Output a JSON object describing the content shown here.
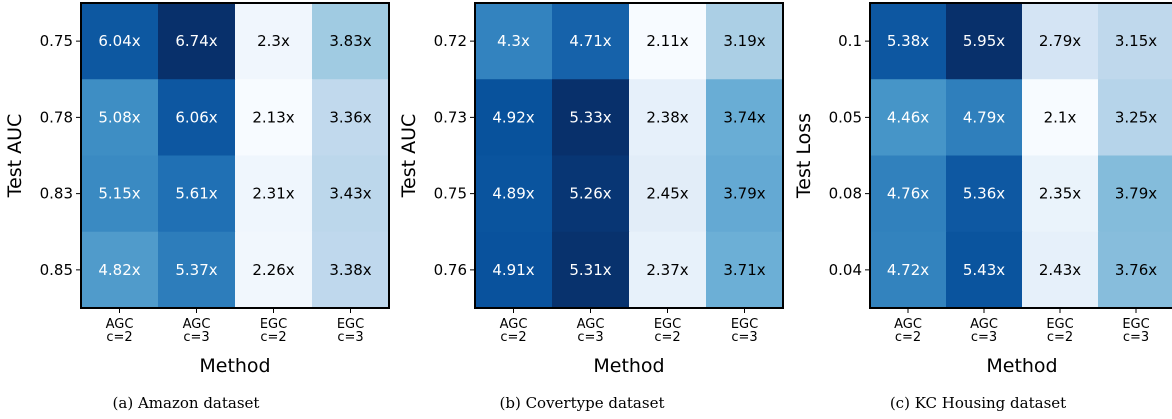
{
  "chart_data": [
    {
      "type": "heatmap",
      "caption": "(a) Amazon dataset",
      "ylabel": "Test AUC",
      "xlabel": "Method",
      "categories": [
        "AGC\nc=2",
        "AGC\nc=3",
        "EGC\nc=2",
        "EGC\nc=3"
      ],
      "rows": [
        "0.75",
        "0.78",
        "0.83",
        "0.85"
      ],
      "values": [
        [
          6.04,
          6.74,
          2.3,
          3.83
        ],
        [
          5.08,
          6.06,
          2.13,
          3.36
        ],
        [
          5.15,
          5.61,
          2.31,
          3.43
        ],
        [
          4.82,
          5.37,
          2.26,
          3.38
        ]
      ],
      "cell_labels": [
        [
          "6.04x",
          "6.74x",
          "2.3x",
          "3.83x"
        ],
        [
          "5.08x",
          "6.06x",
          "2.13x",
          "3.36x"
        ],
        [
          "5.15x",
          "5.61x",
          "2.31x",
          "3.43x"
        ],
        [
          "4.82x",
          "5.37x",
          "2.26x",
          "3.38x"
        ]
      ],
      "colormap": "Blues"
    },
    {
      "type": "heatmap",
      "caption": "(b) Covertype dataset",
      "ylabel": "Test AUC",
      "xlabel": "Method",
      "categories": [
        "AGC\nc=2",
        "AGC\nc=3",
        "EGC\nc=2",
        "EGC\nc=3"
      ],
      "rows": [
        "0.72",
        "0.73",
        "0.75",
        "0.76"
      ],
      "values": [
        [
          4.3,
          4.71,
          2.11,
          3.19
        ],
        [
          4.92,
          5.33,
          2.38,
          3.74
        ],
        [
          4.89,
          5.26,
          2.45,
          3.79
        ],
        [
          4.91,
          5.31,
          2.37,
          3.71
        ]
      ],
      "cell_labels": [
        [
          "4.3x",
          "4.71x",
          "2.11x",
          "3.19x"
        ],
        [
          "4.92x",
          "5.33x",
          "2.38x",
          "3.74x"
        ],
        [
          "4.89x",
          "5.26x",
          "2.45x",
          "3.79x"
        ],
        [
          "4.91x",
          "5.31x",
          "2.37x",
          "3.71x"
        ]
      ],
      "colormap": "Blues"
    },
    {
      "type": "heatmap",
      "caption": "(c) KC Housing dataset",
      "ylabel": "Test Loss",
      "xlabel": "Method",
      "categories": [
        "AGC\nc=2",
        "AGC\nc=3",
        "EGC\nc=2",
        "EGC\nc=3"
      ],
      "rows": [
        "0.1",
        "0.05",
        "0.08",
        "0.04"
      ],
      "values": [
        [
          5.38,
          5.95,
          2.79,
          3.15
        ],
        [
          4.46,
          4.79,
          2.1,
          3.25
        ],
        [
          4.76,
          5.36,
          2.35,
          3.79
        ],
        [
          4.72,
          5.43,
          2.43,
          3.76
        ]
      ],
      "cell_labels": [
        [
          "5.38x",
          "5.95x",
          "2.79x",
          "3.15x"
        ],
        [
          "4.46x",
          "4.79x",
          "2.1x",
          "3.25x"
        ],
        [
          "4.76x",
          "5.36x",
          "2.35x",
          "3.79x"
        ],
        [
          "4.72x",
          "5.43x",
          "2.43x",
          "3.76x"
        ]
      ],
      "colormap": "Blues"
    }
  ]
}
